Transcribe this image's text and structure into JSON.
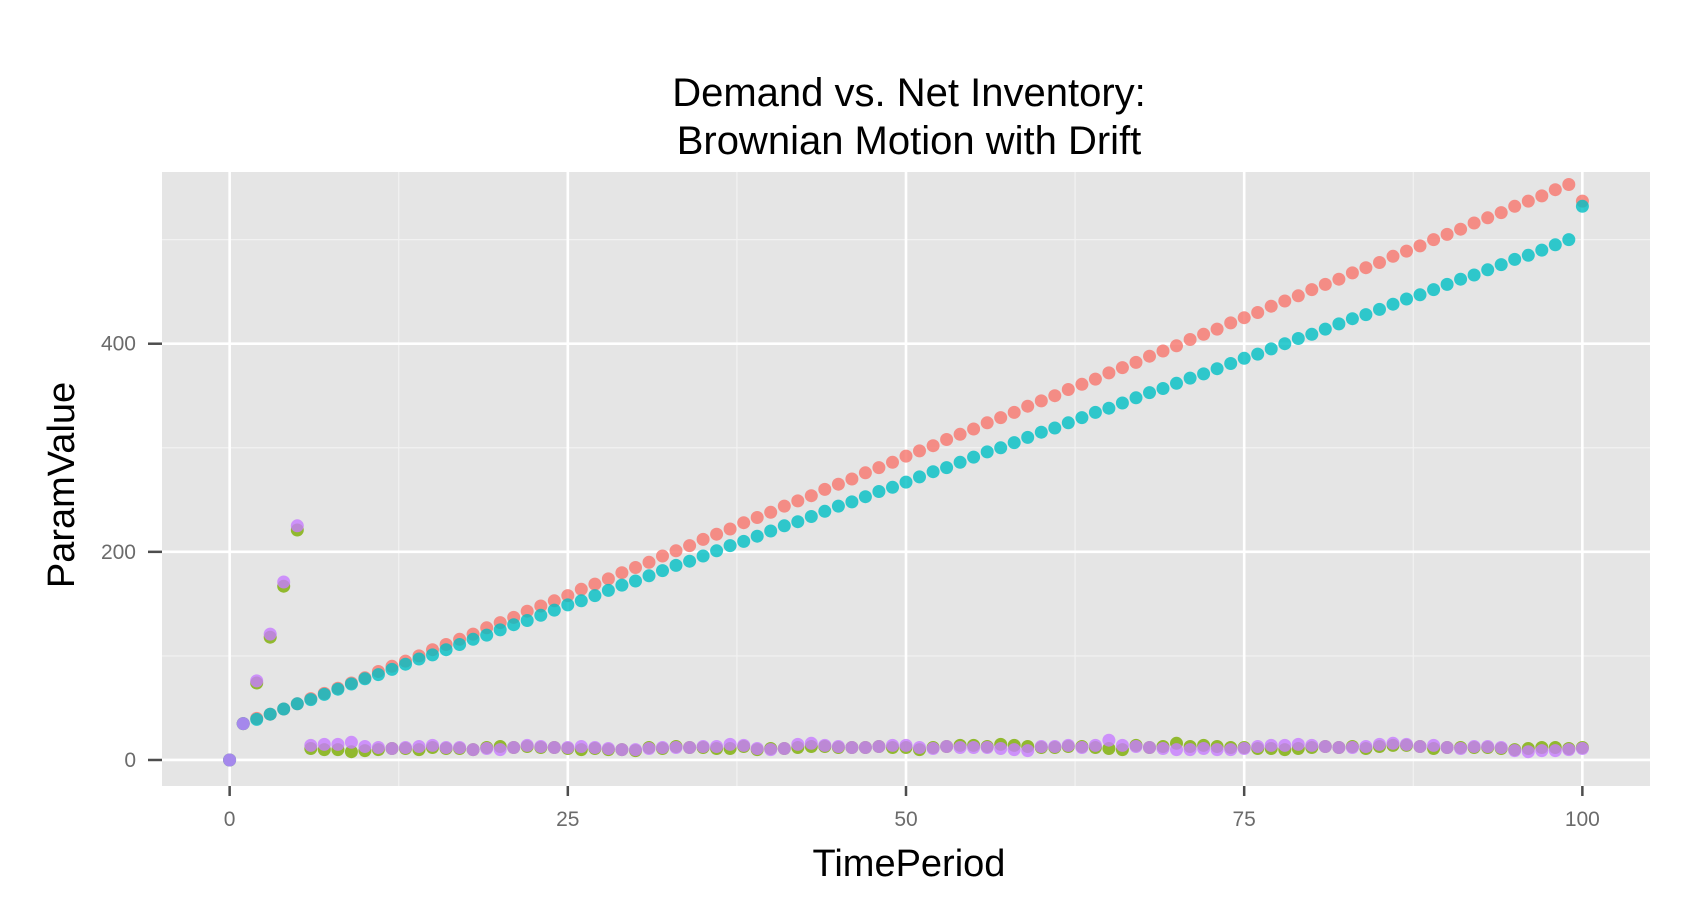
{
  "chart_data": {
    "type": "scatter",
    "title_lines": [
      "Demand vs. Net Inventory:",
      "Brownian Motion with Drift"
    ],
    "xlabel": "TimePeriod",
    "ylabel": "ParamValue",
    "xlim": [
      -5,
      105
    ],
    "ylim": [
      -25,
      565
    ],
    "x_ticks": [
      0,
      25,
      50,
      75,
      100
    ],
    "x_tick_labels": [
      "0",
      "25",
      "50",
      "75",
      "100"
    ],
    "x_minor_ticks": [
      12.5,
      37.5,
      62.5,
      87.5
    ],
    "y_ticks": [
      0,
      200,
      400
    ],
    "y_tick_labels": [
      "0",
      "200",
      "400"
    ],
    "y_minor_ticks": [
      100,
      300,
      500
    ],
    "grid": true,
    "legend": "none",
    "background": "#e5e5e5",
    "grid_color": "#ffffff",
    "point_opacity": 0.8,
    "series": [
      {
        "color": "#f8766d",
        "x": [
          0,
          1,
          2,
          3,
          4,
          5,
          6,
          7,
          8,
          9,
          10,
          11,
          12,
          13,
          14,
          15,
          16,
          17,
          18,
          19,
          20,
          21,
          22,
          23,
          24,
          25,
          26,
          27,
          28,
          29,
          30,
          31,
          32,
          33,
          34,
          35,
          36,
          37,
          38,
          39,
          40,
          41,
          42,
          43,
          44,
          45,
          46,
          47,
          48,
          49,
          50,
          51,
          52,
          53,
          54,
          55,
          56,
          57,
          58,
          59,
          60,
          61,
          62,
          63,
          64,
          65,
          66,
          67,
          68,
          69,
          70,
          71,
          72,
          73,
          74,
          75,
          76,
          77,
          78,
          79,
          80,
          81,
          82,
          83,
          84,
          85,
          86,
          87,
          88,
          89,
          90,
          91,
          92,
          93,
          94,
          95,
          96,
          97,
          98,
          99,
          100
        ],
        "y": [
          0,
          35,
          40,
          44,
          49,
          54,
          59,
          64,
          69,
          74,
          79,
          85,
          90,
          95,
          100,
          106,
          111,
          116,
          121,
          127,
          132,
          137,
          143,
          148,
          153,
          158,
          164,
          169,
          174,
          180,
          185,
          190,
          196,
          201,
          206,
          212,
          217,
          222,
          228,
          233,
          238,
          244,
          249,
          254,
          260,
          265,
          270,
          276,
          281,
          286,
          292,
          297,
          302,
          308,
          313,
          318,
          324,
          329,
          334,
          340,
          345,
          350,
          356,
          361,
          366,
          372,
          377,
          382,
          388,
          393,
          398,
          404,
          409,
          414,
          420,
          425,
          430,
          436,
          441,
          446,
          452,
          457,
          462,
          468,
          473,
          478,
          484,
          489,
          494,
          500,
          505,
          510,
          516,
          521,
          526,
          532,
          537,
          542,
          548,
          553,
          537
        ]
      },
      {
        "color": "#7cae00",
        "x": [
          0,
          1,
          2,
          3,
          4,
          5,
          6,
          7,
          8,
          9,
          10,
          11,
          12,
          13,
          14,
          15,
          16,
          17,
          18,
          19,
          20,
          21,
          22,
          23,
          24,
          25,
          26,
          27,
          28,
          29,
          30,
          31,
          32,
          33,
          34,
          35,
          36,
          37,
          38,
          39,
          40,
          41,
          42,
          43,
          44,
          45,
          46,
          47,
          48,
          49,
          50,
          51,
          52,
          53,
          54,
          55,
          56,
          57,
          58,
          59,
          60,
          61,
          62,
          63,
          64,
          65,
          66,
          67,
          68,
          69,
          70,
          71,
          72,
          73,
          74,
          75,
          76,
          77,
          78,
          79,
          80,
          81,
          82,
          83,
          84,
          85,
          86,
          87,
          88,
          89,
          90,
          91,
          92,
          93,
          94,
          95,
          96,
          97,
          98,
          99,
          100
        ],
        "y": [
          0,
          35,
          74,
          118,
          167,
          221,
          11,
          10,
          10,
          8,
          9,
          10,
          11,
          11,
          10,
          12,
          11,
          11,
          10,
          12,
          13,
          12,
          13,
          12,
          12,
          11,
          10,
          11,
          10,
          10,
          9,
          12,
          11,
          13,
          12,
          12,
          11,
          11,
          13,
          10,
          11,
          11,
          12,
          13,
          13,
          12,
          12,
          12,
          13,
          12,
          12,
          10,
          12,
          13,
          14,
          14,
          13,
          15,
          14,
          13,
          12,
          12,
          13,
          13,
          12,
          11,
          10,
          14,
          12,
          13,
          16,
          13,
          14,
          13,
          12,
          12,
          11,
          11,
          10,
          11,
          12,
          13,
          12,
          13,
          11,
          13,
          14,
          14,
          13,
          11,
          12,
          12,
          12,
          12,
          11,
          10,
          11,
          12,
          12,
          11,
          12
        ]
      },
      {
        "color": "#00bfc4",
        "x": [
          0,
          1,
          2,
          3,
          4,
          5,
          6,
          7,
          8,
          9,
          10,
          11,
          12,
          13,
          14,
          15,
          16,
          17,
          18,
          19,
          20,
          21,
          22,
          23,
          24,
          25,
          26,
          27,
          28,
          29,
          30,
          31,
          32,
          33,
          34,
          35,
          36,
          37,
          38,
          39,
          40,
          41,
          42,
          43,
          44,
          45,
          46,
          47,
          48,
          49,
          50,
          51,
          52,
          53,
          54,
          55,
          56,
          57,
          58,
          59,
          60,
          61,
          62,
          63,
          64,
          65,
          66,
          67,
          68,
          69,
          70,
          71,
          72,
          73,
          74,
          75,
          76,
          77,
          78,
          79,
          80,
          81,
          82,
          83,
          84,
          85,
          86,
          87,
          88,
          89,
          90,
          91,
          92,
          93,
          94,
          95,
          96,
          97,
          98,
          99,
          100
        ],
        "y": [
          0,
          35,
          39,
          44,
          49,
          54,
          58,
          63,
          68,
          73,
          78,
          82,
          87,
          92,
          97,
          101,
          106,
          111,
          116,
          120,
          125,
          130,
          134,
          139,
          144,
          149,
          153,
          158,
          163,
          168,
          172,
          177,
          182,
          187,
          191,
          196,
          201,
          206,
          210,
          215,
          220,
          225,
          229,
          234,
          239,
          244,
          248,
          253,
          258,
          262,
          267,
          272,
          277,
          281,
          286,
          291,
          296,
          300,
          305,
          310,
          315,
          319,
          324,
          329,
          334,
          338,
          343,
          348,
          353,
          357,
          362,
          367,
          371,
          376,
          381,
          386,
          390,
          395,
          400,
          405,
          409,
          414,
          419,
          424,
          428,
          433,
          438,
          443,
          447,
          452,
          457,
          462,
          466,
          471,
          476,
          481,
          485,
          490,
          495,
          500,
          532
        ]
      },
      {
        "color": "#c77cff",
        "x": [
          0,
          1,
          2,
          3,
          4,
          5,
          6,
          7,
          8,
          9,
          10,
          11,
          12,
          13,
          14,
          15,
          16,
          17,
          18,
          19,
          20,
          21,
          22,
          23,
          24,
          25,
          26,
          27,
          28,
          29,
          30,
          31,
          32,
          33,
          34,
          35,
          36,
          37,
          38,
          39,
          40,
          41,
          42,
          43,
          44,
          45,
          46,
          47,
          48,
          49,
          50,
          51,
          52,
          53,
          54,
          55,
          56,
          57,
          58,
          59,
          60,
          61,
          62,
          63,
          64,
          65,
          66,
          67,
          68,
          69,
          70,
          71,
          72,
          73,
          74,
          75,
          76,
          77,
          78,
          79,
          80,
          81,
          82,
          83,
          84,
          85,
          86,
          87,
          88,
          89,
          90,
          91,
          92,
          93,
          94,
          95,
          96,
          97,
          98,
          99,
          100
        ],
        "y": [
          0,
          35,
          76,
          121,
          171,
          225,
          14,
          15,
          15,
          17,
          13,
          12,
          11,
          12,
          13,
          14,
          12,
          12,
          10,
          11,
          10,
          12,
          14,
          13,
          12,
          12,
          13,
          12,
          11,
          10,
          10,
          11,
          12,
          12,
          12,
          13,
          13,
          15,
          14,
          11,
          10,
          11,
          15,
          16,
          14,
          13,
          12,
          12,
          13,
          14,
          14,
          12,
          11,
          13,
          12,
          12,
          12,
          11,
          10,
          9,
          13,
          13,
          14,
          12,
          14,
          19,
          14,
          13,
          12,
          11,
          10,
          10,
          11,
          10,
          10,
          11,
          13,
          14,
          14,
          15,
          14,
          13,
          12,
          12,
          13,
          15,
          16,
          15,
          13,
          14,
          12,
          11,
          13,
          13,
          12,
          9,
          8,
          9,
          9,
          10,
          11
        ]
      }
    ]
  }
}
